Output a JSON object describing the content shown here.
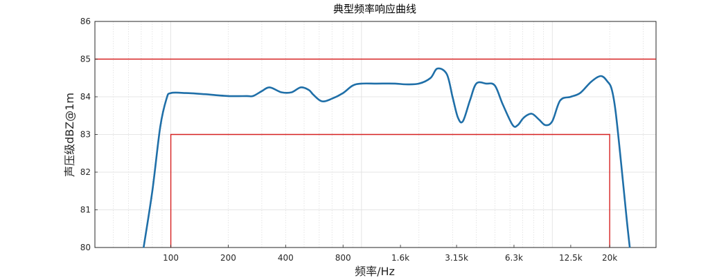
{
  "chart_data": {
    "type": "line",
    "title": "典型频率响应曲线",
    "xlabel": "频率/Hz",
    "ylabel": "声压级dBZ@1m",
    "x_scale": "log",
    "xlim": [
      40,
      35000
    ],
    "ylim": [
      80,
      86
    ],
    "grid": true,
    "x_ticks": [
      {
        "value": 100,
        "label": "100"
      },
      {
        "value": 200,
        "label": "200"
      },
      {
        "value": 400,
        "label": "400"
      },
      {
        "value": 800,
        "label": "800"
      },
      {
        "value": 1600,
        "label": "1.6k"
      },
      {
        "value": 3150,
        "label": "3.15k"
      },
      {
        "value": 6300,
        "label": "6.3k"
      },
      {
        "value": 12500,
        "label": "12.5k"
      },
      {
        "value": 20000,
        "label": "20k"
      }
    ],
    "y_ticks": [
      {
        "value": 80,
        "label": "80"
      },
      {
        "value": 81,
        "label": "81"
      },
      {
        "value": 82,
        "label": "82"
      },
      {
        "value": 83,
        "label": "83"
      },
      {
        "value": 84,
        "label": "84"
      },
      {
        "value": 85,
        "label": "85"
      },
      {
        "value": 86,
        "label": "86"
      }
    ],
    "series": [
      {
        "color": "#1f6fa8",
        "x": [
          72,
          80,
          88,
          95,
          100,
          120,
          150,
          200,
          250,
          270,
          300,
          330,
          380,
          430,
          480,
          530,
          560,
          620,
          700,
          800,
          900,
          1000,
          1200,
          1500,
          1700,
          2000,
          2300,
          2500,
          2800,
          3000,
          3200,
          3400,
          3700,
          4000,
          4500,
          5000,
          5500,
          6200,
          6600,
          7100,
          7800,
          8500,
          9200,
          10000,
          11000,
          12500,
          14000,
          16000,
          18000,
          19500,
          20500,
          21500,
          23000,
          24500,
          25500
        ],
        "y": [
          80.0,
          81.5,
          83.2,
          83.95,
          84.1,
          84.1,
          84.07,
          84.02,
          84.02,
          84.02,
          84.15,
          84.25,
          84.12,
          84.12,
          84.25,
          84.18,
          84.05,
          83.88,
          83.95,
          84.1,
          84.3,
          84.35,
          84.35,
          84.35,
          84.33,
          84.35,
          84.5,
          84.75,
          84.6,
          84.0,
          83.45,
          83.35,
          83.9,
          84.35,
          84.35,
          84.3,
          83.8,
          83.25,
          83.25,
          83.45,
          83.55,
          83.4,
          83.25,
          83.35,
          83.9,
          84.0,
          84.1,
          84.4,
          84.55,
          84.4,
          84.2,
          83.6,
          82.2,
          80.8,
          80.0
        ]
      }
    ],
    "limit_lines": [
      {
        "color": "#d62020",
        "x": [
          40,
          35000
        ],
        "y": [
          85,
          85
        ]
      },
      {
        "color": "#d62020",
        "x": [
          100,
          100,
          20000,
          20000
        ],
        "y": [
          80,
          83,
          83,
          80
        ]
      }
    ]
  }
}
